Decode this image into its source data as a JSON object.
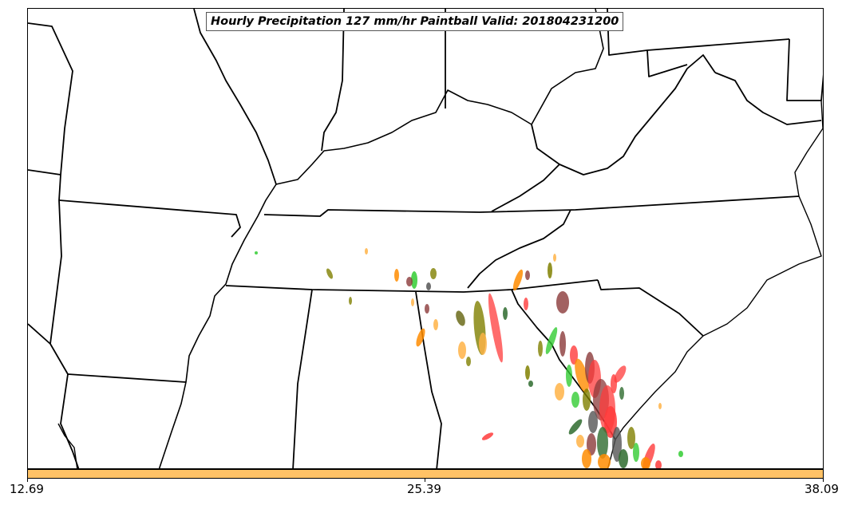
{
  "title": "Hourly Precipitation 127 mm/hr Paintball Valid: 201804231200",
  "colorbar": {
    "color": "#ffc266",
    "ticks": [
      "12.69",
      "25.39",
      "38.09"
    ]
  },
  "colors": {
    "boundary": "#000000",
    "paintball_members": [
      "#ff3b3b",
      "#ff8c00",
      "#33cc33",
      "#8b3a3a",
      "#808000",
      "#2e6b2e",
      "#ffb347",
      "#555555"
    ]
  }
}
